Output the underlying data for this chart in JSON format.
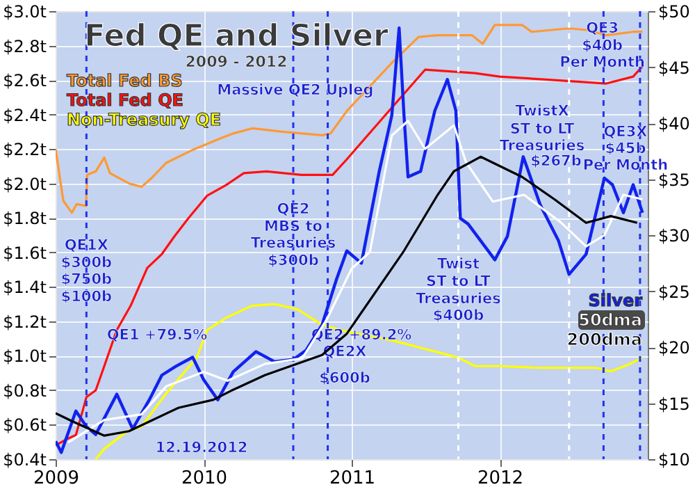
{
  "chart_data": {
    "type": "line",
    "title": "Fed QE and Silver",
    "subtitle": "2009 - 2012",
    "xlim": [
      "2009-01-01",
      "2012-12-31"
    ],
    "xticks": [
      {
        "value": "2009-01-01",
        "label": "2009"
      },
      {
        "value": "2010-01-01",
        "label": "2010"
      },
      {
        "value": "2011-01-01",
        "label": "2011"
      },
      {
        "value": "2012-01-01",
        "label": "2012"
      }
    ],
    "ylim": [
      0.4,
      3.0
    ],
    "yticks": [
      {
        "value": 0.4,
        "label": "$0.4t"
      },
      {
        "value": 0.6,
        "label": "$0.6t"
      },
      {
        "value": 0.8,
        "label": "$0.8t"
      },
      {
        "value": 1.0,
        "label": "$1.0t"
      },
      {
        "value": 1.2,
        "label": "$1.2t"
      },
      {
        "value": 1.4,
        "label": "$1.4t"
      },
      {
        "value": 1.6,
        "label": "$1.6t"
      },
      {
        "value": 1.8,
        "label": "$1.8t"
      },
      {
        "value": 2.0,
        "label": "$2.0t"
      },
      {
        "value": 2.2,
        "label": "$2.2t"
      },
      {
        "value": 2.4,
        "label": "$2.4t"
      },
      {
        "value": 2.6,
        "label": "$2.6t"
      },
      {
        "value": 2.8,
        "label": "$2.8t"
      },
      {
        "value": 3.0,
        "label": "$3.0t"
      }
    ],
    "y2lim": [
      10,
      50
    ],
    "y2ticks": [
      {
        "value": 10,
        "label": "$10"
      },
      {
        "value": 15,
        "label": "$15"
      },
      {
        "value": 20,
        "label": "$20"
      },
      {
        "value": 25,
        "label": "$25"
      },
      {
        "value": 30,
        "label": "$30"
      },
      {
        "value": 35,
        "label": "$35"
      },
      {
        "value": 40,
        "label": "$40"
      },
      {
        "value": 45,
        "label": "$45"
      },
      {
        "value": 50,
        "label": "$50"
      }
    ],
    "grid": true,
    "legend": "top left",
    "marker": "none",
    "series": [
      {
        "name": "Total Fed BS",
        "color": "#ff9933",
        "x": [
          "2009-01-01",
          "2009-01-20",
          "2009-02-10",
          "2009-02-22",
          "2009-03-17",
          "2009-03-20",
          "2009-04-10",
          "2009-05-01",
          "2009-05-15",
          "2009-07-01",
          "2009-08-01",
          "2009-08-25",
          "2009-10-01",
          "2009-12-10",
          "2010-02-10",
          "2010-03-15",
          "2010-05-01",
          "2010-07-15",
          "2010-10-20",
          "2010-11-10",
          "2010-12-20",
          "2011-04-10",
          "2011-06-15",
          "2011-08-01",
          "2011-10-25",
          "2011-11-20",
          "2011-12-20",
          "2012-02-25",
          "2012-03-20",
          "2012-06-20",
          "2012-08-05",
          "2012-09-20",
          "2012-11-25",
          "2012-12-18"
        ],
        "values": [
          2.2,
          1.9,
          1.83,
          1.88,
          1.87,
          2.05,
          2.07,
          2.15,
          2.06,
          2.0,
          1.98,
          2.03,
          2.12,
          2.2,
          2.26,
          2.29,
          2.32,
          2.3,
          2.28,
          2.29,
          2.42,
          2.7,
          2.85,
          2.86,
          2.86,
          2.81,
          2.92,
          2.92,
          2.88,
          2.9,
          2.89,
          2.86,
          2.88,
          2.88
        ]
      },
      {
        "name": "Total Fed QE",
        "color": "#ff1111",
        "x": [
          "2009-01-01",
          "2009-02-01",
          "2009-02-20",
          "2009-03-18",
          "2009-04-10",
          "2009-05-01",
          "2009-06-01",
          "2009-07-05",
          "2009-08-15",
          "2009-09-20",
          "2009-10-20",
          "2009-11-25",
          "2010-01-10",
          "2010-02-25",
          "2010-04-10",
          "2010-06-05",
          "2010-08-30",
          "2010-11-15",
          "2010-12-20",
          "2011-04-10",
          "2011-07-01",
          "2011-11-01",
          "2012-01-01",
          "2012-05-15",
          "2012-09-20",
          "2012-11-25",
          "2012-12-18"
        ],
        "values": [
          0.48,
          0.52,
          0.54,
          0.76,
          0.8,
          0.94,
          1.15,
          1.29,
          1.51,
          1.59,
          1.69,
          1.8,
          1.93,
          1.99,
          2.06,
          2.07,
          2.05,
          2.05,
          2.14,
          2.44,
          2.66,
          2.64,
          2.62,
          2.6,
          2.58,
          2.62,
          2.68
        ]
      },
      {
        "name": "Non-Treasury QE",
        "color": "#ffff00",
        "x": [
          "2009-04-10",
          "2009-05-01",
          "2009-06-25",
          "2009-08-01",
          "2009-09-30",
          "2009-12-15",
          "2010-01-10",
          "2010-02-25",
          "2010-04-30",
          "2010-06-25",
          "2010-08-20",
          "2010-10-20",
          "2010-12-20",
          "2011-04-10",
          "2011-09-20",
          "2011-11-01",
          "2012-01-01",
          "2012-04-10",
          "2012-08-25",
          "2012-09-30",
          "2012-11-15",
          "2012-12-18"
        ],
        "values": [
          0.4,
          0.46,
          0.56,
          0.59,
          0.78,
          0.99,
          1.15,
          1.22,
          1.29,
          1.3,
          1.27,
          1.18,
          1.14,
          1.09,
          0.99,
          0.94,
          0.94,
          0.93,
          0.93,
          0.91,
          0.95,
          0.99
        ]
      },
      {
        "name": "Silver",
        "color": "#1122ee",
        "axis": "y2",
        "x": [
          "2009-01-01",
          "2009-01-15",
          "2009-02-20",
          "2009-03-18",
          "2009-04-10",
          "2009-06-01",
          "2009-07-10",
          "2009-08-20",
          "2009-09-20",
          "2009-10-25",
          "2009-12-05",
          "2010-01-01",
          "2010-02-05",
          "2010-03-15",
          "2010-05-10",
          "2010-06-25",
          "2010-08-10",
          "2010-09-10",
          "2010-10-20",
          "2010-11-25",
          "2010-12-20",
          "2011-01-25",
          "2011-03-10",
          "2011-04-10",
          "2011-04-28",
          "2011-05-10",
          "2011-05-20",
          "2011-06-20",
          "2011-07-25",
          "2011-08-25",
          "2011-09-15",
          "2011-09-26",
          "2011-10-15",
          "2011-12-20",
          "2012-01-20",
          "2012-02-28",
          "2012-04-10",
          "2012-05-25",
          "2012-06-20",
          "2012-08-01",
          "2012-09-15",
          "2012-10-05",
          "2012-11-01",
          "2012-11-25",
          "2012-12-18"
        ],
        "values": [
          11.6,
          10.6,
          14.3,
          12.9,
          12.2,
          15.8,
          12.7,
          15.3,
          17.5,
          18.3,
          19.1,
          17.1,
          15.3,
          17.8,
          19.6,
          18.7,
          18.9,
          19.7,
          22.0,
          26.1,
          28.6,
          27.5,
          35.7,
          40.7,
          48.5,
          40.7,
          35.2,
          35.7,
          41.1,
          43.9,
          41.1,
          31.5,
          31.0,
          27.8,
          29.9,
          37.0,
          32.7,
          29.5,
          26.5,
          28.3,
          35.1,
          34.5,
          32.0,
          34.5,
          32.0
        ]
      },
      {
        "name": "50dma",
        "color": "#ffffff",
        "axis": "y2",
        "x": [
          "2009-02-01",
          "2009-05-01",
          "2009-08-01",
          "2009-10-01",
          "2010-01-01",
          "2010-03-01",
          "2010-06-01",
          "2010-09-01",
          "2010-11-01",
          "2011-01-01",
          "2011-02-15",
          "2011-04-10",
          "2011-05-20",
          "2011-07-01",
          "2011-09-10",
          "2011-10-10",
          "2011-12-15",
          "2012-03-01",
          "2012-06-01",
          "2012-08-01",
          "2012-09-15",
          "2012-11-01",
          "2012-12-18"
        ],
        "values": [
          11.5,
          13.5,
          14.0,
          16.5,
          17.8,
          17.0,
          18.5,
          19.0,
          22.5,
          27.0,
          28.5,
          38.9,
          40.2,
          37.7,
          39.8,
          36.5,
          33.0,
          33.6,
          31.1,
          29.0,
          30.0,
          33.6,
          33.2
        ]
      },
      {
        "name": "200dma",
        "color": "#000000",
        "axis": "y2",
        "x": [
          "2009-01-01",
          "2009-02-10",
          "2009-05-01",
          "2009-07-01",
          "2009-11-01",
          "2010-01-25",
          "2010-03-15",
          "2010-06-01",
          "2010-10-20",
          "2010-12-20",
          "2011-05-10",
          "2011-08-01",
          "2011-09-10",
          "2011-11-15",
          "2012-02-25",
          "2012-05-15",
          "2012-08-01",
          "2012-10-01",
          "2012-12-05"
        ],
        "values": [
          14.1,
          13.4,
          12.1,
          12.5,
          14.6,
          15.3,
          16.2,
          17.5,
          19.3,
          21.2,
          28.6,
          33.6,
          35.7,
          37.0,
          35.2,
          33.2,
          31.1,
          31.7,
          31.1
        ]
      }
    ],
    "ref_lines": [
      {
        "axis": "x",
        "value": "2009-03-18",
        "color": "#2233ee",
        "line_style": "dashed"
      },
      {
        "axis": "x",
        "value": "2010-08-10",
        "color": "#2233ee",
        "line_style": "dashed"
      },
      {
        "axis": "x",
        "value": "2010-11-03",
        "color": "#2233ee",
        "line_style": "dashed"
      },
      {
        "axis": "x",
        "value": "2011-09-21",
        "color": "#ffffff",
        "line_style": "dashed"
      },
      {
        "axis": "x",
        "value": "2012-06-20",
        "color": "#ffffff",
        "line_style": "dashed"
      },
      {
        "axis": "x",
        "value": "2012-09-13",
        "color": "#2233ee",
        "line_style": "dashed"
      },
      {
        "axis": "x",
        "value": "2012-12-12",
        "color": "#2233ee",
        "line_style": "dashed"
      }
    ],
    "annotations": [
      {
        "text": "QE1X",
        "x": "2009-03-18",
        "y": 1.64
      },
      {
        "text": "$300b",
        "x": "2009-03-18",
        "y": 1.54
      },
      {
        "text": "$750b",
        "x": "2009-03-18",
        "y": 1.44
      },
      {
        "text": "$100b",
        "x": "2009-03-18",
        "y": 1.34
      },
      "QE1 +79.5%",
      {
        "text": "QE2",
        "x": "2010-08-10",
        "y": 1.85
      },
      {
        "text": "MBS to",
        "x": "2010-08-10",
        "y": 1.75
      },
      {
        "text": "Treasuries",
        "x": "2010-08-10",
        "y": 1.65
      },
      {
        "text": "$300b",
        "x": "2010-08-10",
        "y": 1.55
      },
      {
        "text": "Massive QE2 Upleg",
        "x": "2010-08-15",
        "y": 2.54
      },
      {
        "text": "QE2 +89.2%",
        "x": "2011-01-25",
        "y": 1.12
      },
      "QE2X",
      "$600b",
      {
        "text": "Twist",
        "x": "2011-09-21",
        "y": 1.53
      },
      {
        "text": "ST to LT",
        "x": "2011-09-21",
        "y": 1.43
      },
      {
        "text": "Treasuries",
        "x": "2011-09-21",
        "y": 1.33
      },
      {
        "text": "$400b",
        "x": "2011-09-21",
        "y": 1.23
      },
      "TwistX",
      "ST to LT",
      "Treasuries",
      "$267b",
      {
        "text": "QE3",
        "x": "2012-09-10",
        "y": 2.9
      },
      {
        "text": "$40b",
        "x": "2012-09-10",
        "y": 2.8
      },
      {
        "text": "Per Month",
        "x": "2012-09-10",
        "y": 2.7
      },
      "QE3X",
      "$45b",
      "Per Month",
      "12.19.2012"
    ]
  }
}
